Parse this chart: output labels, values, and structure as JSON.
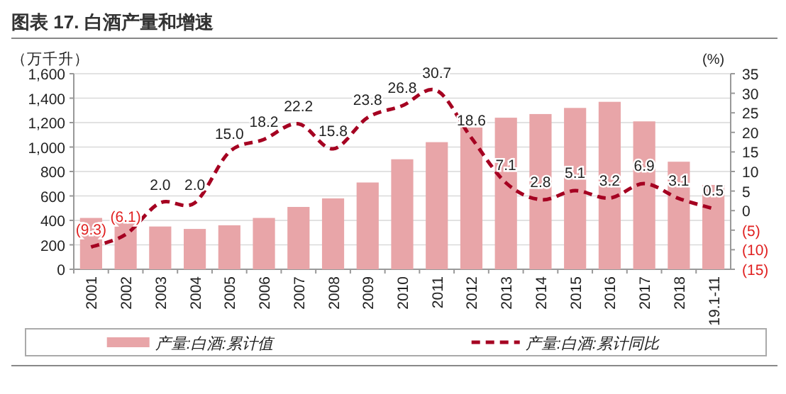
{
  "chart_data": {
    "type": "bar",
    "title": "图表 17. 白酒产量和增速",
    "ylabel": "（万千升）",
    "y2label": "(%)",
    "categories": [
      "2001",
      "2002",
      "2003",
      "2004",
      "2005",
      "2006",
      "2007",
      "2008",
      "2009",
      "2010",
      "2011",
      "2012",
      "2013",
      "2014",
      "2015",
      "2016",
      "2017",
      "2018",
      "19.1-11"
    ],
    "series": [
      {
        "name": "产量:白酒:累计值",
        "color": "#e8a5a8",
        "values": [
          420,
          390,
          350,
          330,
          360,
          420,
          510,
          580,
          710,
          900,
          1040,
          1160,
          1240,
          1270,
          1320,
          1370,
          1210,
          880,
          690
        ]
      },
      {
        "name": "产量:白酒:累计同比",
        "type": "line",
        "axis": "y2",
        "color": "#a50021",
        "line_style": "dashed",
        "values": [
          -9.3,
          -6.1,
          2.0,
          2.0,
          15.0,
          18.2,
          22.2,
          15.8,
          23.8,
          26.8,
          30.7,
          18.6,
          7.1,
          2.8,
          5.1,
          3.2,
          6.9,
          3.1,
          0.5
        ],
        "value_labels": [
          "(9.3)",
          "(6.1)",
          "2.0",
          "2.0",
          "15.0",
          "18.2",
          "22.2",
          "15.8",
          "23.8",
          "26.8",
          "30.7",
          "18.6",
          "7.1",
          "2.8",
          "5.1",
          "3.2",
          "6.9",
          "3.1",
          "0.5"
        ]
      }
    ],
    "ylim": [
      0,
      1600
    ],
    "yticks": [
      {
        "value": 0,
        "label": "0"
      },
      {
        "value": 200,
        "label": "200"
      },
      {
        "value": 400,
        "label": "400"
      },
      {
        "value": 600,
        "label": "600"
      },
      {
        "value": 800,
        "label": "800"
      },
      {
        "value": 1000,
        "label": "1,000"
      },
      {
        "value": 1200,
        "label": "1,200"
      },
      {
        "value": 1400,
        "label": "1,400"
      },
      {
        "value": 1600,
        "label": "1,600"
      }
    ],
    "y2lim": [
      -15,
      35
    ],
    "y2ticks": [
      {
        "value": -15,
        "label": "(15)"
      },
      {
        "value": -10,
        "label": "(10)"
      },
      {
        "value": -5,
        "label": "(5)"
      },
      0,
      5,
      10,
      15,
      20,
      25,
      30,
      35
    ],
    "grid": "y",
    "legend": "bottom"
  }
}
